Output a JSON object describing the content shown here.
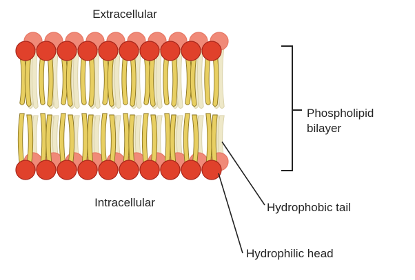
{
  "labels": {
    "extracellular": "Extracellular",
    "intracellular": "Intracellular",
    "bilayer_line1": "Phospholipid",
    "bilayer_line2": "bilayer",
    "tail": "Hydrophobic tail",
    "head": "Hydrophilic head"
  },
  "colors": {
    "head_fill": "#e0412b",
    "head_stroke": "#a8261a",
    "head_back": "#f08a78",
    "tail_fill": "#e8cf62",
    "tail_stroke": "#8a7420",
    "tail_back": "#eee8c8",
    "line": "#222222"
  },
  "molecule_count_per_leaflet": 10
}
